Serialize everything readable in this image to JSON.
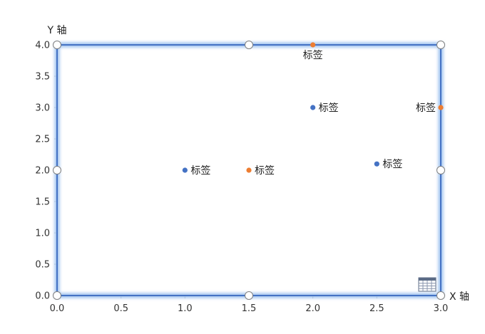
{
  "chart_data": {
    "type": "scatter",
    "xlabel": "X 轴",
    "ylabel": "Y 轴",
    "xlim": [
      0,
      3
    ],
    "ylim": [
      0,
      4
    ],
    "x_ticks": [
      "0.0",
      "0.5",
      "1.0",
      "1.5",
      "2.0",
      "2.5",
      "3.0"
    ],
    "y_ticks": [
      "0.0",
      "0.5",
      "1.0",
      "1.5",
      "2.0",
      "2.5",
      "3.0",
      "3.5",
      "4.0"
    ],
    "series": [
      {
        "color": "#4472C4",
        "points": [
          {
            "x": 1.0,
            "y": 2.0,
            "label": "标签",
            "label_pos": "right"
          },
          {
            "x": 2.0,
            "y": 3.0,
            "label": "标签",
            "label_pos": "right"
          },
          {
            "x": 2.5,
            "y": 2.1,
            "label": "标签",
            "label_pos": "right"
          }
        ]
      },
      {
        "color": "#ED7D31",
        "points": [
          {
            "x": 1.5,
            "y": 2.0,
            "label": "标签",
            "label_pos": "right"
          },
          {
            "x": 2.0,
            "y": 4.0,
            "label": "标签",
            "label_pos": "below"
          },
          {
            "x": 3.0,
            "y": 3.0,
            "label": "标签",
            "label_pos": "left"
          }
        ]
      }
    ],
    "grid": false,
    "legend": "none",
    "plot_area_selected": true,
    "selection_color": "#4472C4",
    "icon": "data-table-icon"
  }
}
